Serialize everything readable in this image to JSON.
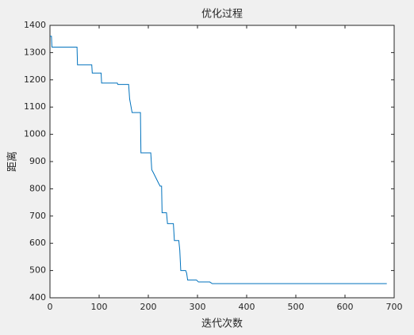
{
  "chart_data": {
    "type": "line",
    "title": "优化过程",
    "x_label": "迭代次数",
    "y_label": "距离",
    "x": [
      0,
      3,
      4,
      55,
      56,
      85,
      86,
      104,
      105,
      137,
      138,
      160,
      162,
      165,
      167,
      184,
      185,
      205,
      207,
      210,
      221,
      224,
      227,
      228,
      237,
      239,
      251,
      253,
      262,
      264,
      266,
      276,
      278,
      280,
      298,
      302,
      325,
      330,
      685
    ],
    "series": [
      {
        "color": "#0072bd",
        "values": [
          1360,
          1360,
          1320,
          1320,
          1255,
          1255,
          1225,
          1225,
          1188,
          1188,
          1183,
          1183,
          1130,
          1100,
          1080,
          1080,
          932,
          932,
          870,
          860,
          820,
          810,
          810,
          712,
          712,
          672,
          672,
          610,
          610,
          575,
          500,
          500,
          490,
          465,
          465,
          458,
          458,
          452,
          452
        ]
      }
    ],
    "xlim": [
      0,
      700
    ],
    "xticks": [
      0,
      100,
      200,
      300,
      400,
      500,
      600,
      700
    ],
    "ylim": [
      400,
      1400
    ],
    "yticks": [
      400,
      500,
      600,
      700,
      800,
      900,
      1000,
      1100,
      1200,
      1300,
      1400
    ]
  }
}
